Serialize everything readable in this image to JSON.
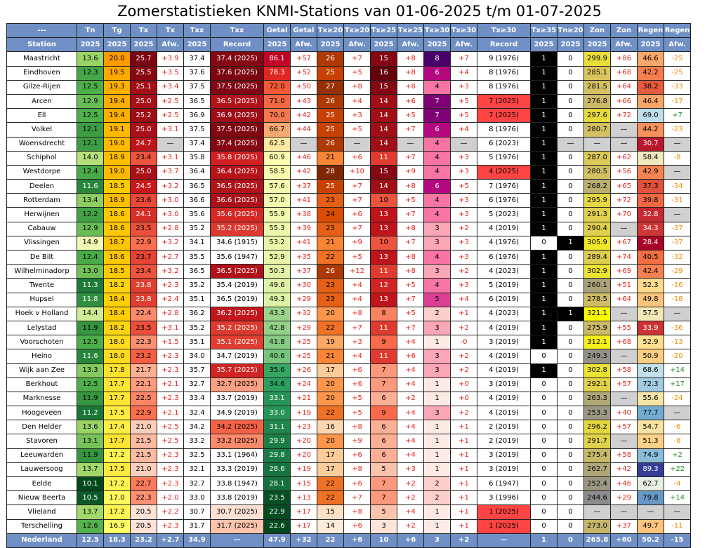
{
  "title": "Zomerstatistieken KNMI-Stations van 01-06-2025 t/m 01-07-2025",
  "header1": [
    "---",
    "Tn",
    "Tg",
    "Tx",
    "Tx",
    "Txx",
    "Txx",
    "Getal",
    "Getal",
    "Tx≥20",
    "Tx≥20",
    "Tx≥25",
    "Tx≥25",
    "Tx≥30",
    "Tx≥30",
    "Tx≥30",
    "Tx≥35",
    "Tn≥20",
    "Zon",
    "Zon",
    "Regen",
    "Regen"
  ],
  "header2": [
    "Station",
    "2025",
    "2025",
    "2025",
    "Afw.",
    "2025",
    "Record",
    "2025",
    "Afw.",
    "2025",
    "Afw.",
    "2025",
    "Afw.",
    "2025",
    "Afw.",
    "Record",
    "2025",
    "2025",
    "2025",
    "Afw.",
    "2025",
    "Afw."
  ],
  "rows": [
    [
      "Maastricht",
      "13.6",
      "20.0",
      "25.7",
      "+3.9",
      "37.4",
      "37.4 (2025)",
      "86.1",
      "+57",
      "26",
      "+7",
      "15",
      "+8",
      "8",
      "+7",
      "9 (1976)",
      "1",
      "0",
      "299.9",
      "+86",
      "46.6",
      "-25"
    ],
    [
      "Eindhoven",
      "12.3",
      "19.5",
      "25.5",
      "+3.5",
      "37.6",
      "37.6 (2025)",
      "78.3",
      "+52",
      "25",
      "+5",
      "16",
      "+8",
      "6",
      "+4",
      "8 (1976)",
      "1",
      "0",
      "285.1",
      "+68",
      "42.2",
      "-25"
    ],
    [
      "Gilze-Rijen",
      "12.5",
      "19.3",
      "25.1",
      "+3.4",
      "37.5",
      "37.5 (2025)",
      "72.0",
      "+50",
      "27",
      "+8",
      "15",
      "+8",
      "4",
      "+3",
      "8 (1976)",
      "1",
      "0",
      "281.5",
      "+64",
      "38.2",
      "-33"
    ],
    [
      "Arcen",
      "12.9",
      "19.4",
      "25.0",
      "+2.5",
      "36.5",
      "36.5 (2025)",
      "71.0",
      "+43",
      "26",
      "+4",
      "14",
      "+6",
      "7",
      "+5",
      "7 (2025)",
      "1",
      "0",
      "276.8",
      "+66",
      "46.4",
      "-17"
    ],
    [
      "Ell",
      "12.5",
      "19.4",
      "25.2",
      "+2.5",
      "36.9",
      "36.9 (2025)",
      "70.0",
      "+42",
      "25",
      "+3",
      "14",
      "+5",
      "7",
      "+5",
      "7 (2025)",
      "1",
      "0",
      "297.6",
      "+72",
      "69.0",
      "+7"
    ],
    [
      "Volkel",
      "12.1",
      "19.1",
      "25.0",
      "+3.1",
      "37.5",
      "37.5 (2025)",
      "66.7",
      "+44",
      "25",
      "+5",
      "14",
      "+7",
      "6",
      "+4",
      "8 (1976)",
      "1",
      "0",
      "280.7",
      "—",
      "44.2",
      "-23"
    ],
    [
      "Woensdrecht",
      "12.1",
      "19.0",
      "24.7",
      "—",
      "37.4",
      "37.4 (2025)",
      "62.5",
      "—",
      "26",
      "—",
      "14",
      "—",
      "4",
      "—",
      "6 (2023)",
      "1",
      "—",
      "—",
      "—",
      "30.7",
      "—"
    ],
    [
      "Schiphol",
      "14.0",
      "18.9",
      "23.4",
      "+3.1",
      "35.8",
      "35.8 (2025)",
      "60.9",
      "+46",
      "21",
      "+6",
      "11",
      "+7",
      "4",
      "+3",
      "5 (1976)",
      "1",
      "0",
      "287.0",
      "+62",
      "58.4",
      "-8"
    ],
    [
      "Westdorpe",
      "12.4",
      "19.0",
      "25.0",
      "+3.7",
      "36.4",
      "36.4 (2025)",
      "58.5",
      "+42",
      "28",
      "+10",
      "15",
      "+9",
      "4",
      "+3",
      "4 (2025)",
      "1",
      "0",
      "280.5",
      "+56",
      "42.9",
      "—"
    ],
    [
      "Deelen",
      "11.6",
      "18.5",
      "24.5",
      "+3.2",
      "36.5",
      "36.5 (2025)",
      "57.6",
      "+37",
      "25",
      "+7",
      "14",
      "+8",
      "6",
      "+5",
      "7 (1976)",
      "1",
      "0",
      "268.2",
      "+65",
      "37.3",
      "-34"
    ],
    [
      "Rotterdam",
      "13.4",
      "18.9",
      "23.6",
      "+3.0",
      "36.6",
      "36.6 (2025)",
      "57.0",
      "+41",
      "23",
      "+7",
      "10",
      "+5",
      "4",
      "+3",
      "6 (1976)",
      "1",
      "0",
      "295.9",
      "+72",
      "39.8",
      "-31"
    ],
    [
      "Herwijnen",
      "12.2",
      "18.6",
      "24.1",
      "+3.0",
      "35.6",
      "35.6 (2025)",
      "55.9",
      "+38",
      "24",
      "+6",
      "13",
      "+7",
      "4",
      "+3",
      "5 (2023)",
      "1",
      "0",
      "291.3",
      "+70",
      "32.8",
      "—"
    ],
    [
      "Cabauw",
      "12.9",
      "18.6",
      "23.5",
      "+2.8",
      "35.2",
      "35.2 (2025)",
      "55.3",
      "+39",
      "23",
      "+7",
      "13",
      "+8",
      "3",
      "+2",
      "4 (2019)",
      "1",
      "0",
      "290.4",
      "—",
      "34.3",
      "-37"
    ],
    [
      "Vlissingen",
      "14.9",
      "18.7",
      "22.9",
      "+3.2",
      "34.1",
      "34.6 (1915)",
      "53.2",
      "+41",
      "21",
      "+9",
      "10",
      "+7",
      "3",
      "+3",
      "4 (1976)",
      "0",
      "1",
      "305.9",
      "+67",
      "28.4",
      "-37"
    ],
    [
      "De Bilt",
      "12.4",
      "18.6",
      "23.7",
      "+2.7",
      "35.5",
      "35.6 (1947)",
      "52.9",
      "+35",
      "22",
      "+5",
      "13",
      "+8",
      "4",
      "+3",
      "6 (1976)",
      "1",
      "0",
      "289.4",
      "+74",
      "40.5",
      "-32"
    ],
    [
      "Wilhelminadorp",
      "13.0",
      "18.5",
      "23.4",
      "+3.2",
      "36.5",
      "36.5 (2025)",
      "50.3",
      "+37",
      "26",
      "+12",
      "11",
      "+8",
      "3",
      "+2",
      "4 (2023)",
      "1",
      "0",
      "302.9",
      "+69",
      "42.4",
      "-29"
    ],
    [
      "Twente",
      "11.3",
      "18.2",
      "23.8",
      "+2.3",
      "35.2",
      "35.4 (2019)",
      "49.6",
      "+30",
      "23",
      "+4",
      "12",
      "+5",
      "4",
      "+3",
      "5 (2019)",
      "1",
      "0",
      "260.1",
      "+51",
      "52.3",
      "-16"
    ],
    [
      "Hupsel",
      "11.8",
      "18.4",
      "23.8",
      "+2.4",
      "35.1",
      "36.5 (2019)",
      "49.3",
      "+29",
      "23",
      "+4",
      "13",
      "+7",
      "5",
      "+4",
      "6 (2019)",
      "1",
      "0",
      "278.5",
      "+64",
      "49.8",
      "-18"
    ],
    [
      "Hoek v Holland",
      "14.4",
      "18.4",
      "22.4",
      "+2.8",
      "36.2",
      "36.2 (2025)",
      "43.3",
      "+32",
      "20",
      "+8",
      "8",
      "+5",
      "2",
      "+1",
      "4 (2023)",
      "1",
      "1",
      "321.1",
      "—",
      "57.5",
      "—"
    ],
    [
      "Lelystad",
      "11.9",
      "18.2",
      "23.5",
      "+3.1",
      "35.2",
      "35.2 (2025)",
      "42.8",
      "+29",
      "22",
      "+7",
      "11",
      "+7",
      "3",
      "+2",
      "4 (2019)",
      "1",
      "0",
      "275.9",
      "+55",
      "33.9",
      "-36"
    ],
    [
      "Voorschoten",
      "12.5",
      "18.0",
      "22.3",
      "+1.5",
      "35.1",
      "35.1 (2025)",
      "41.8",
      "+25",
      "19",
      "+3",
      "9",
      "+4",
      "1",
      "-0",
      "3 (2019)",
      "1",
      "0",
      "312.1",
      "+68",
      "52.9",
      "-13"
    ],
    [
      "Heino",
      "11.6",
      "18.0",
      "23.2",
      "+2.3",
      "34.0",
      "34.7 (2019)",
      "40.6",
      "+25",
      "21",
      "+4",
      "11",
      "+6",
      "3",
      "+2",
      "4 (2019)",
      "0",
      "0",
      "249.3",
      "—",
      "50.9",
      "-20"
    ],
    [
      "Wijk aan Zee",
      "13.3",
      "17.8",
      "21.7",
      "+2.3",
      "35.7",
      "35.7 (2025)",
      "35.6",
      "+26",
      "17",
      "+6",
      "7",
      "+4",
      "3",
      "+2",
      "4 (2019)",
      "1",
      "0",
      "302.8",
      "+58",
      "68.6",
      "+14"
    ],
    [
      "Berkhout",
      "12.5",
      "17.7",
      "22.1",
      "+2.1",
      "32.7",
      "32.7 (2025)",
      "34.6",
      "+24",
      "20",
      "+6",
      "7",
      "+4",
      "1",
      "+0",
      "3 (2019)",
      "0",
      "0",
      "292.1",
      "+57",
      "72.3",
      "+17"
    ],
    [
      "Marknesse",
      "11.9",
      "17.7",
      "22.5",
      "+2.3",
      "33.4",
      "33.7 (2019)",
      "33.1",
      "+21",
      "20",
      "+5",
      "6",
      "+2",
      "1",
      "+0",
      "4 (2019)",
      "0",
      "0",
      "263.3",
      "—",
      "55.6",
      "-24"
    ],
    [
      "Hoogeveen",
      "11.2",
      "17.5",
      "22.9",
      "+2.1",
      "32.4",
      "34.9 (2019)",
      "33.0",
      "+19",
      "22",
      "+5",
      "9",
      "+4",
      "3",
      "+2",
      "4 (2019)",
      "0",
      "0",
      "253.3",
      "+40",
      "77.7",
      "—"
    ],
    [
      "Den Helder",
      "13.6",
      "17.4",
      "21.0",
      "+2.5",
      "34.2",
      "34.2 (2025)",
      "31.1",
      "+23",
      "16",
      "+8",
      "6",
      "+4",
      "1",
      "+1",
      "2 (2019)",
      "0",
      "0",
      "296.2",
      "+57",
      "54.7",
      "-6"
    ],
    [
      "Stavoren",
      "13.1",
      "17.7",
      "21.5",
      "+2.5",
      "33.2",
      "33.2 (2025)",
      "29.9",
      "+20",
      "20",
      "+9",
      "6",
      "+4",
      "1",
      "+1",
      "2 (2019)",
      "0",
      "0",
      "291.7",
      "—",
      "51.3",
      "-8"
    ],
    [
      "Leeuwarden",
      "11.9",
      "17.2",
      "21.5",
      "+2.3",
      "32.5",
      "33.1 (1964)",
      "29.8",
      "+20",
      "17",
      "+6",
      "6",
      "+4",
      "1",
      "+1",
      "3 (2019)",
      "0",
      "0",
      "275.4",
      "+58",
      "74.9",
      "+2"
    ],
    [
      "Lauwersoog",
      "13.7",
      "17.5",
      "21.0",
      "+2.3",
      "32.1",
      "33.3 (2019)",
      "28.6",
      "+19",
      "17",
      "+8",
      "5",
      "+3",
      "1",
      "+1",
      "3 (2019)",
      "0",
      "0",
      "262.7",
      "+42",
      "89.3",
      "+22"
    ],
    [
      "Eelde",
      "10.1",
      "17.2",
      "22.7",
      "+2.3",
      "32.7",
      "33.8 (1947)",
      "28.1",
      "+15",
      "22",
      "+6",
      "7",
      "+2",
      "2",
      "+1",
      "6 (1947)",
      "0",
      "0",
      "252.4",
      "+46",
      "62.7",
      "-4"
    ],
    [
      "Nieuw Beerta",
      "10.5",
      "17.0",
      "22.3",
      "+2.0",
      "33.0",
      "33.8 (2019)",
      "23.5",
      "+13",
      "22",
      "+7",
      "7",
      "+2",
      "2",
      "+1",
      "3 (1996)",
      "0",
      "0",
      "244.6",
      "+29",
      "79.8",
      "+14"
    ],
    [
      "Vlieland",
      "13.7",
      "17.2",
      "20.5",
      "+2.2",
      "30.7",
      "30.7 (2025)",
      "22.9",
      "+17",
      "15",
      "+8",
      "5",
      "+4",
      "1",
      "+1",
      "1 (2025)",
      "0",
      "0",
      "—",
      "—",
      "—",
      "—"
    ],
    [
      "Terschelling",
      "12.6",
      "16.9",
      "20.5",
      "+2.3",
      "31.7",
      "31.7 (2025)",
      "22.6",
      "+17",
      "14",
      "+6",
      "3",
      "+2",
      "1",
      "+1",
      "1 (2025)",
      "0",
      "0",
      "273.0",
      "+37",
      "49.7",
      "-11"
    ]
  ],
  "footer": [
    "Nederland",
    "12.5",
    "18.3",
    "23.2",
    "+2.7",
    "34.9",
    "—",
    "47.9",
    "+32",
    "22",
    "+6",
    "10",
    "+6",
    "3",
    "+2",
    "—",
    "1",
    "0",
    "265.8",
    "+60",
    "50.2",
    "-15"
  ],
  "colors": {
    "header_bg": "#6f8fc5",
    "positive_text": "#e8231c",
    "wet_text": "#1f8a1f",
    "dry_text": "#f08c00"
  }
}
